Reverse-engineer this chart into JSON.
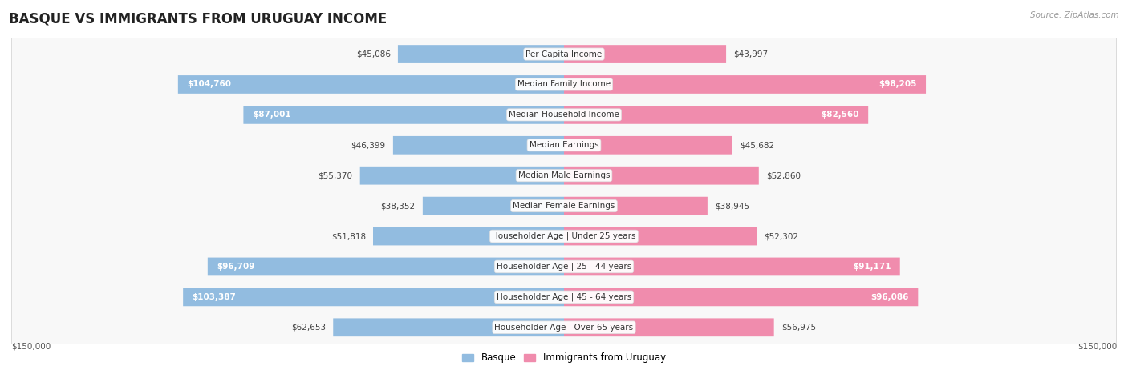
{
  "title": "BASQUE VS IMMIGRANTS FROM URUGUAY INCOME",
  "source": "Source: ZipAtlas.com",
  "categories": [
    "Per Capita Income",
    "Median Family Income",
    "Median Household Income",
    "Median Earnings",
    "Median Male Earnings",
    "Median Female Earnings",
    "Householder Age | Under 25 years",
    "Householder Age | 25 - 44 years",
    "Householder Age | 45 - 64 years",
    "Householder Age | Over 65 years"
  ],
  "basque_values": [
    45086,
    104760,
    87001,
    46399,
    55370,
    38352,
    51818,
    96709,
    103387,
    62653
  ],
  "uruguay_values": [
    43997,
    98205,
    82560,
    45682,
    52860,
    38945,
    52302,
    91171,
    96086,
    56975
  ],
  "basque_labels": [
    "$45,086",
    "$104,760",
    "$87,001",
    "$46,399",
    "$55,370",
    "$38,352",
    "$51,818",
    "$96,709",
    "$103,387",
    "$62,653"
  ],
  "uruguay_labels": [
    "$43,997",
    "$98,205",
    "$82,560",
    "$45,682",
    "$52,860",
    "$38,945",
    "$52,302",
    "$91,171",
    "$96,086",
    "$56,975"
  ],
  "max_value": 150000,
  "basque_color": "#92bce0",
  "uruguay_color": "#f08cad",
  "basque_label_inside_threshold": 75000,
  "uruguay_label_inside_threshold": 75000,
  "legend_basque": "Basque",
  "legend_uruguay": "Immigrants from Uruguay",
  "bg_color": "#ffffff",
  "row_bg": "#f0f0f0",
  "row_border": "#cccccc",
  "label_fontsize": 7.5,
  "cat_fontsize": 7.5,
  "title_fontsize": 12
}
